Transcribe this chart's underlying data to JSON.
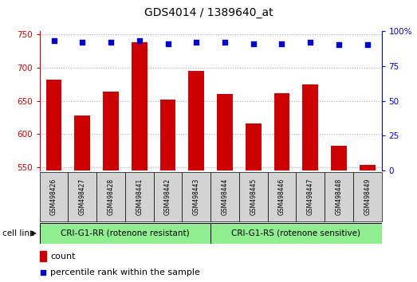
{
  "title": "GDS4014 / 1389640_at",
  "categories": [
    "GSM498426",
    "GSM498427",
    "GSM498428",
    "GSM498441",
    "GSM498442",
    "GSM498443",
    "GSM498444",
    "GSM498445",
    "GSM498446",
    "GSM498447",
    "GSM498448",
    "GSM498449"
  ],
  "bar_values": [
    682,
    628,
    664,
    738,
    652,
    695,
    660,
    616,
    661,
    675,
    582,
    554
  ],
  "bar_color": "#cc0000",
  "percentile_values": [
    93,
    92,
    92,
    93,
    91,
    92,
    92,
    91,
    91,
    92,
    90,
    90
  ],
  "percentile_color": "#0000cc",
  "ylim_left": [
    545,
    755
  ],
  "ylim_right": [
    0,
    100
  ],
  "yticks_left": [
    550,
    600,
    650,
    700,
    750
  ],
  "yticks_right": [
    0,
    25,
    50,
    75,
    100
  ],
  "group1_label": "CRI-G1-RR (rotenone resistant)",
  "group2_label": "CRI-G1-RS (rotenone sensitive)",
  "group1_count": 6,
  "group2_count": 6,
  "cell_line_label": "cell line",
  "legend_count_label": "count",
  "legend_percentile_label": "percentile rank within the sample",
  "group_color": "#90ee90",
  "bg_color": "#ffffff",
  "grid_color": "#aaaaaa",
  "tick_label_area_color": "#d3d3d3"
}
